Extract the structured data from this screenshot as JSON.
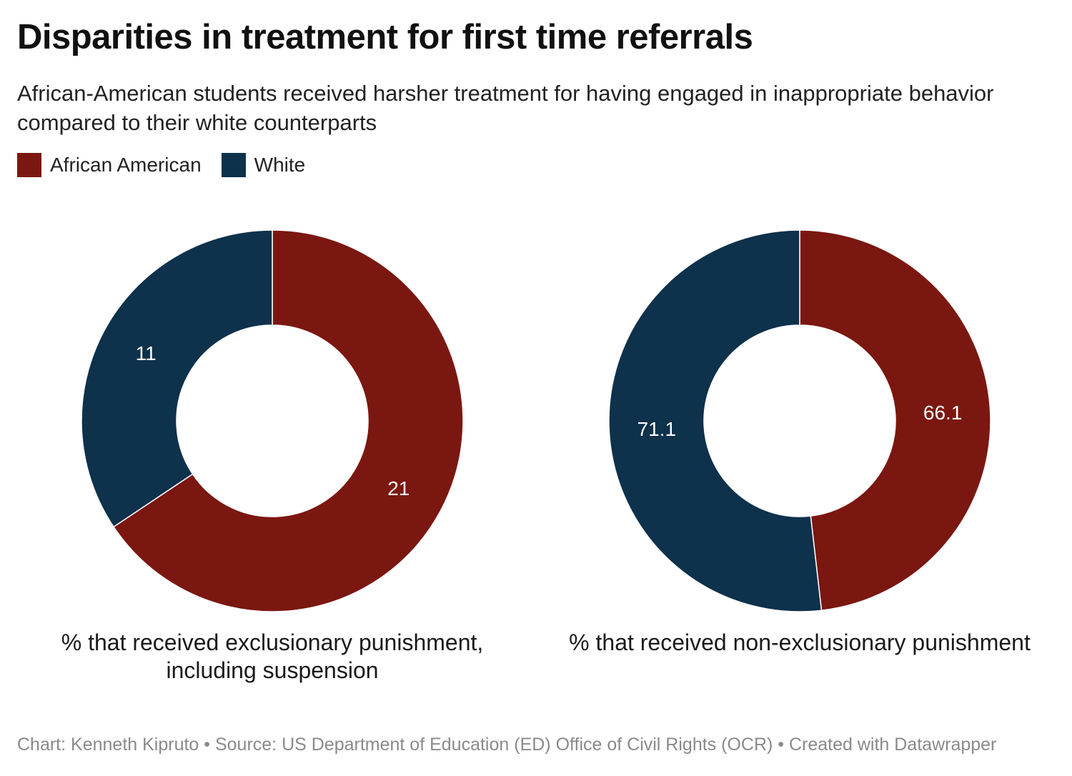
{
  "header": {
    "title": "Disparities in treatment for first time referrals",
    "subtitle": "African-American students received harsher treatment for having engaged in inappropriate behavior compared to their white counterparts"
  },
  "colors": {
    "african_american": "#7b1711",
    "white": "#0e314c"
  },
  "chart_data": [
    {
      "type": "pie",
      "variant": "donut",
      "title": "% that received exclusionary punishment, including suspension",
      "legend": [
        "African American",
        "White"
      ],
      "legend_position": "top-left",
      "slices": [
        {
          "name": "African American",
          "value": 21,
          "label": "21"
        },
        {
          "name": "White",
          "value": 11,
          "label": "11"
        }
      ]
    },
    {
      "type": "pie",
      "variant": "donut",
      "title": "% that received non-exclusionary punishment",
      "legend": [
        "African American",
        "White"
      ],
      "legend_position": "top-left",
      "slices": [
        {
          "name": "African American",
          "value": 66.1,
          "label": "66.1"
        },
        {
          "name": "White",
          "value": 71.1,
          "label": "71.1"
        }
      ]
    }
  ],
  "footer": {
    "text": "Chart: Kenneth Kipruto • Source: US Department of Education (ED) Office of Civil Rights (OCR) • Created with Datawrapper"
  }
}
